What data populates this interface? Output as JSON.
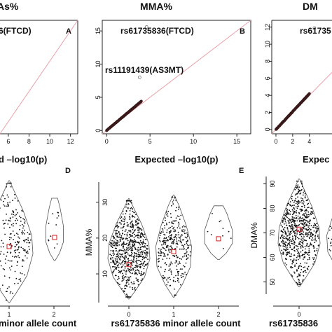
{
  "chart_data": [
    {
      "panel": "A",
      "type": "scatter",
      "title": "As%",
      "xlabel": "d –log10(p)",
      "annotations": [
        "6(FTCD)"
      ],
      "x_ticks": [
        "6",
        "8",
        "10",
        "12"
      ],
      "x_tick_values": [
        6,
        8,
        10,
        12
      ],
      "xlim": [
        5.2,
        12.7
      ],
      "ylim": [
        5.2,
        12.7
      ],
      "reference_line": "y = x",
      "points": []
    },
    {
      "panel": "B",
      "type": "scatter",
      "title": "MMA%",
      "xlabel": "Expected –log10(p)",
      "annotations": [
        "rs61735836(FTCD)",
        "rs11191439(AS3MT)"
      ],
      "x_ticks": [
        "0",
        "5",
        "10",
        "15"
      ],
      "x_tick_values": [
        0,
        5,
        10,
        15
      ],
      "y_ticks": [
        "0",
        "5",
        "10",
        "15"
      ],
      "y_tick_values": [
        0,
        5,
        10,
        15
      ],
      "xlim": [
        -0.5,
        16.6
      ],
      "ylim": [
        -0.5,
        16.6
      ],
      "reference_line": "y = x",
      "qq_max_expected": 4.0,
      "qq_max_observed": 4.4,
      "outliers": [
        {
          "label": "rs61735836(FTCD)",
          "x": 4.6,
          "y": 15.6
        },
        {
          "label": "rs11191439(AS3MT)",
          "x": 3.8,
          "y": 8.0
        }
      ]
    },
    {
      "panel": "C",
      "type": "scatter",
      "title": "DM",
      "xlabel": "Expec",
      "annotations": [
        "rs61735"
      ],
      "x_ticks": [
        "0",
        "2",
        "4"
      ],
      "x_tick_values": [
        0,
        2,
        4
      ],
      "y_ticks": [
        "0",
        "2",
        "4",
        "6",
        "8",
        "10",
        "12"
      ],
      "y_tick_values": [
        0,
        2,
        4,
        6,
        8,
        10,
        12
      ],
      "xlim": [
        -0.5,
        6.7
      ],
      "ylim": [
        -0.5,
        12.8
      ],
      "reference_line": "y = x",
      "qq_max_expected": 4.0,
      "qq_max_observed": 4.2,
      "outliers": [
        {
          "label": "rs61735",
          "x": 4.6,
          "y": 11.9
        }
      ]
    },
    {
      "panel": "D",
      "type": "scatter",
      "subtype": "violin-jitter",
      "xlabel": "minor allele count",
      "x_ticks": [
        "1",
        "2"
      ],
      "x_tick_values": [
        1,
        2
      ],
      "groups": [
        {
          "x": 1,
          "n_shown": 260,
          "mean": 0.5,
          "mean_pos": 0.58,
          "range": [
            0.05,
            0.98
          ]
        },
        {
          "x": 2,
          "n_shown": 12,
          "mean_pos": 0.52,
          "range": [
            0.32,
            0.83
          ]
        }
      ]
    },
    {
      "panel": "E",
      "type": "scatter",
      "subtype": "violin-jitter",
      "ylabel": "MMA%",
      "xlabel": "rs61735836 minor allele count",
      "x_ticks": [
        "0",
        "1",
        "2"
      ],
      "x_tick_values": [
        0,
        1,
        2
      ],
      "y_ticks": [
        "10",
        "20",
        "30"
      ],
      "y_tick_values": [
        10,
        20,
        30
      ],
      "ylim": [
        2,
        36
      ],
      "groups": [
        {
          "x": 0,
          "n_shown": 1500,
          "mean": 12.6,
          "range": [
            3,
            31
          ]
        },
        {
          "x": 1,
          "n_shown": 320,
          "mean": 16.2,
          "range": [
            3.5,
            32
          ]
        },
        {
          "x": 2,
          "n_shown": 10,
          "mean": 19.8,
          "range": [
            14,
            29
          ]
        }
      ]
    },
    {
      "panel": "F",
      "type": "scatter",
      "subtype": "violin-jitter",
      "ylabel": "DMA%",
      "xlabel": "rs61735836",
      "x_ticks": [
        "0"
      ],
      "x_tick_values": [
        0
      ],
      "y_ticks": [
        "50",
        "60",
        "70",
        "80",
        "90"
      ],
      "y_tick_values": [
        50,
        60,
        70,
        80,
        90
      ],
      "ylim": [
        45,
        93
      ],
      "groups": [
        {
          "x": 0,
          "n_shown": 1500,
          "mean": 71.5,
          "range": [
            48,
            92
          ]
        },
        {
          "x": 1,
          "n_shown": 300,
          "mean": 69.5,
          "range": [
            52,
            86
          ]
        }
      ]
    }
  ]
}
